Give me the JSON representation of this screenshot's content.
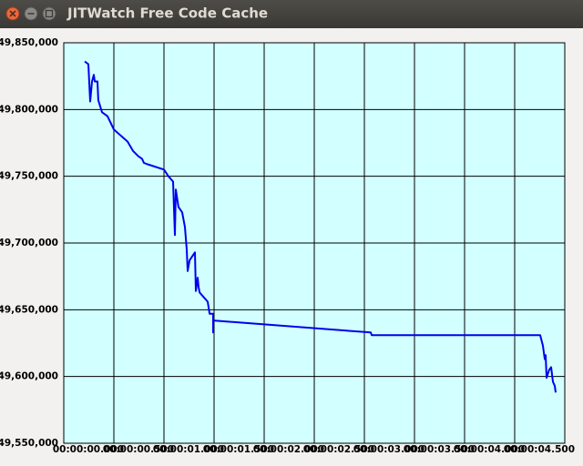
{
  "chart_data": {
    "type": "line",
    "title": "JITWatch Free Code Cache",
    "x": [
      -0.291,
      -0.255,
      -0.236,
      -0.218,
      -0.2,
      -0.191,
      -0.164,
      -0.155,
      -0.118,
      -0.064,
      0,
      0.136,
      0.191,
      0.245,
      0.282,
      0.3,
      0.336,
      0.5,
      0.545,
      0.591,
      0.609,
      0.618,
      0.645,
      0.682,
      0.709,
      0.727,
      0.736,
      0.755,
      0.782,
      0.809,
      0.818,
      0.836,
      0.845,
      0.855,
      0.936,
      0.955,
      0.991,
      0.991,
      0.991,
      2.564,
      2.573,
      4.255,
      4.282,
      4.3,
      4.309,
      4.318,
      4.345,
      4.364,
      4.382,
      4.4,
      4.409
    ],
    "values": [
      49836000,
      49834000,
      49806000,
      49821000,
      49826000,
      49821000,
      49821000,
      49807000,
      49798000,
      49795000,
      49785000,
      49776000,
      49769000,
      49765000,
      49763000,
      49760000,
      49759000,
      49755000,
      49750000,
      49746000,
      49706000,
      49740000,
      49727000,
      49723000,
      49712000,
      49695000,
      49679000,
      49687000,
      49690000,
      49693000,
      49664000,
      49674000,
      49667000,
      49663000,
      49656000,
      49647000,
      49647000,
      49633000,
      49642000,
      49633000,
      49631000,
      49631000,
      49623000,
      49613000,
      49616000,
      49599000,
      49605000,
      49607000,
      49596000,
      49593000,
      49588000
    ],
    "color": "#0000ee",
    "xlim": [
      -0.5,
      4.5
    ],
    "xticks": [
      {
        "value": 0,
        "label": "00:00:00.000"
      },
      {
        "value": 0.5,
        "label": "00:00:00.500"
      },
      {
        "value": 1,
        "label": "00:00:01.000"
      },
      {
        "value": 1.5,
        "label": "00:00:01.500"
      },
      {
        "value": 2,
        "label": "00:00:02.000"
      },
      {
        "value": 2.5,
        "label": "00:00:02.500"
      },
      {
        "value": 3,
        "label": "00:00:03.000"
      },
      {
        "value": 3.5,
        "label": "00:00:03.500"
      },
      {
        "value": 4,
        "label": "00:00:04.000"
      },
      {
        "value": 4.5,
        "label": "00:00:04.500"
      }
    ],
    "ylim": [
      49550000,
      49850000
    ],
    "yticks": [
      {
        "value": 49550000,
        "label": "49,550,000"
      },
      {
        "value": 49600000,
        "label": "49,600,000"
      },
      {
        "value": 49650000,
        "label": "49,650,000"
      },
      {
        "value": 49700000,
        "label": "49,700,000"
      },
      {
        "value": 49750000,
        "label": "49,750,000"
      },
      {
        "value": 49800000,
        "label": "49,800,000"
      },
      {
        "value": 49850000,
        "label": "49,850,000"
      }
    ],
    "grid": true
  }
}
